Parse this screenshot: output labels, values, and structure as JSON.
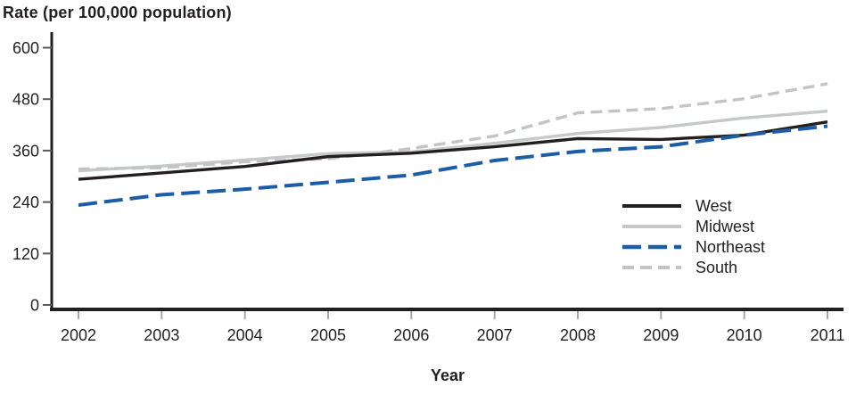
{
  "title": "Rate (per 100,000 population)",
  "chart_data": {
    "type": "line",
    "title": "Rate (per 100,000 population)",
    "xlabel": "Year",
    "ylabel": "Rate (per 100,000 population)",
    "x": [
      2002,
      2003,
      2004,
      2005,
      2006,
      2007,
      2008,
      2009,
      2010,
      2011
    ],
    "ylim": [
      0,
      600
    ],
    "yticks": [
      0,
      120,
      240,
      360,
      480,
      600
    ],
    "grid": false,
    "legend_position": "right-middle",
    "series": [
      {
        "name": "West",
        "color": "#231f20",
        "dash": "",
        "width": 3.4,
        "values": [
          293,
          308,
          323,
          346,
          354,
          369,
          388,
          386,
          396,
          427
        ]
      },
      {
        "name": "Midwest",
        "color": "#c6c8ca",
        "dash": "",
        "width": 3.4,
        "values": [
          313,
          324,
          338,
          353,
          357,
          377,
          400,
          414,
          436,
          452
        ]
      },
      {
        "name": "Northeast",
        "color": "#1c5da8",
        "dash": "21 8",
        "width": 4,
        "values": [
          233,
          257,
          270,
          286,
          303,
          337,
          358,
          369,
          396,
          417
        ]
      },
      {
        "name": "South",
        "color": "#c2c4c6",
        "dash": "13 7",
        "width": 3.4,
        "values": [
          317,
          320,
          334,
          341,
          365,
          394,
          448,
          458,
          481,
          516
        ]
      }
    ]
  },
  "axis_style": {
    "axis_color": "#231f20",
    "y_tick_color": "#58595b",
    "x_tick_color": "#a7a9ac"
  }
}
